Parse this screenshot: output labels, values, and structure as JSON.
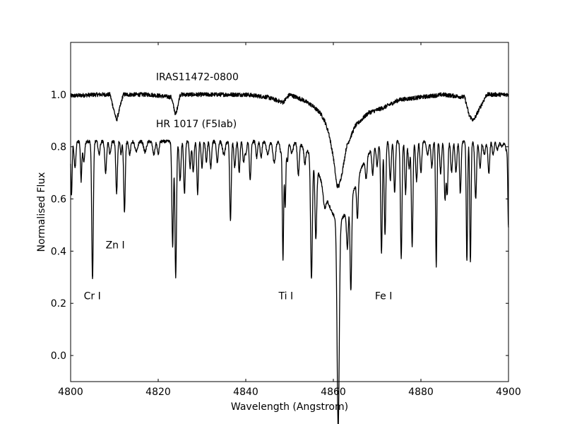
{
  "chart_data": {
    "type": "line",
    "title": "",
    "xlabel": "Wavelength (Angstrom)",
    "ylabel": "Normalised Flux",
    "xlim": [
      4800,
      4900
    ],
    "ylim": [
      -0.1,
      1.2
    ],
    "grid": false,
    "xticks": [
      4800,
      4820,
      4840,
      4860,
      4880,
      4900
    ],
    "yticks": [
      0.0,
      0.2,
      0.4,
      0.6,
      0.8,
      1.0
    ],
    "xtick_labels": [
      "4800",
      "4820",
      "4840",
      "4860",
      "4880",
      "4900"
    ],
    "ytick_labels": [
      "0.0",
      "0.2",
      "0.4",
      "0.6",
      "0.8",
      "1.0"
    ],
    "series": [
      {
        "name": "IRAS11472-0800",
        "color": "#000000",
        "continuum": 1.0,
        "noise": 0.008,
        "x": [
          4800,
          4806,
          4809,
          4810.5,
          4812,
          4818,
          4823,
          4824,
          4825,
          4830,
          4836,
          4840,
          4845,
          4848.5,
          4850,
          4853,
          4855,
          4857,
          4858,
          4859,
          4860,
          4860.8,
          4861.3,
          4862,
          4863,
          4865,
          4868,
          4871.5,
          4875,
          4880,
          4885,
          4890,
          4891,
          4892,
          4895,
          4900
        ],
        "y": [
          0.995,
          1.0,
          1.0,
          0.9,
          1.0,
          1.0,
          0.99,
          0.92,
          1.0,
          1.0,
          1.0,
          1.0,
          0.99,
          0.97,
          1.0,
          0.98,
          0.96,
          0.93,
          0.9,
          0.85,
          0.76,
          0.65,
          0.65,
          0.7,
          0.8,
          0.88,
          0.93,
          0.95,
          0.98,
          0.99,
          1.0,
          0.99,
          0.92,
          0.9,
          1.0,
          1.0
        ]
      },
      {
        "name": "HR 1017 (F5Iab)",
        "color": "#000000",
        "continuum": 0.82,
        "noise": 0.006,
        "lines": [
          [
            4800.2,
            0.2,
            0.15
          ],
          [
            4801.0,
            0.1,
            0.2
          ],
          [
            4802.4,
            0.15,
            0.15
          ],
          [
            4803.0,
            0.08,
            0.2
          ],
          [
            4805.0,
            0.53,
            0.18
          ],
          [
            4806.5,
            0.05,
            0.2
          ],
          [
            4808.0,
            0.12,
            0.2
          ],
          [
            4809.0,
            0.05,
            0.2
          ],
          [
            4810.5,
            0.2,
            0.18
          ],
          [
            4811.5,
            0.05,
            0.15
          ],
          [
            4812.3,
            0.27,
            0.18
          ],
          [
            4813.5,
            0.05,
            0.2
          ],
          [
            4815.0,
            0.04,
            0.3
          ],
          [
            4817.0,
            0.04,
            0.3
          ],
          [
            4819.0,
            0.05,
            0.25
          ],
          [
            4820.0,
            0.05,
            0.2
          ],
          [
            4823.3,
            0.4,
            0.18
          ],
          [
            4824.0,
            0.52,
            0.18
          ],
          [
            4825.0,
            0.15,
            0.2
          ],
          [
            4826.0,
            0.2,
            0.18
          ],
          [
            4827.3,
            0.1,
            0.18
          ],
          [
            4828.0,
            0.12,
            0.18
          ],
          [
            4829.0,
            0.2,
            0.18
          ],
          [
            4830.0,
            0.1,
            0.18
          ],
          [
            4831.0,
            0.08,
            0.18
          ],
          [
            4832.0,
            0.1,
            0.2
          ],
          [
            4833.5,
            0.08,
            0.2
          ],
          [
            4835.0,
            0.05,
            0.3
          ],
          [
            4836.5,
            0.3,
            0.18
          ],
          [
            4837.5,
            0.1,
            0.2
          ],
          [
            4838.5,
            0.12,
            0.18
          ],
          [
            4839.5,
            0.08,
            0.18
          ],
          [
            4840.0,
            0.05,
            0.2
          ],
          [
            4841.0,
            0.15,
            0.18
          ],
          [
            4842.5,
            0.06,
            0.18
          ],
          [
            4843.5,
            0.06,
            0.2
          ],
          [
            4845.0,
            0.05,
            0.3
          ],
          [
            4846.5,
            0.08,
            0.3
          ],
          [
            4848.0,
            0.04,
            0.2
          ],
          [
            4848.5,
            0.45,
            0.15
          ],
          [
            4849.0,
            0.25,
            0.15
          ],
          [
            4849.5,
            0.08,
            0.15
          ],
          [
            4850.5,
            0.04,
            0.3
          ],
          [
            4852.0,
            0.12,
            0.2
          ],
          [
            4853.5,
            0.06,
            0.2
          ],
          [
            4855.0,
            0.47,
            0.2
          ],
          [
            4856.0,
            0.28,
            0.2
          ],
          [
            4858.0,
            0.06,
            0.3
          ],
          [
            4861.1,
            0.8,
            0.25
          ],
          [
            4863.2,
            0.15,
            0.2
          ],
          [
            4864.0,
            0.35,
            0.18
          ],
          [
            4865.5,
            0.15,
            0.18
          ],
          [
            4867.5,
            0.08,
            0.2
          ],
          [
            4869.0,
            0.1,
            0.2
          ],
          [
            4870.0,
            0.08,
            0.2
          ],
          [
            4871.0,
            0.42,
            0.18
          ],
          [
            4871.8,
            0.35,
            0.18
          ],
          [
            4873.0,
            0.15,
            0.2
          ],
          [
            4874.0,
            0.2,
            0.18
          ],
          [
            4875.5,
            0.45,
            0.18
          ],
          [
            4876.5,
            0.2,
            0.18
          ],
          [
            4877.3,
            0.1,
            0.2
          ],
          [
            4878.0,
            0.4,
            0.18
          ],
          [
            4879.0,
            0.15,
            0.2
          ],
          [
            4880.0,
            0.12,
            0.2
          ],
          [
            4881.5,
            0.05,
            0.25
          ],
          [
            4882.5,
            0.1,
            0.2
          ],
          [
            4883.5,
            0.48,
            0.15
          ],
          [
            4884.5,
            0.12,
            0.2
          ],
          [
            4885.5,
            0.22,
            0.18
          ],
          [
            4886.0,
            0.2,
            0.18
          ],
          [
            4887.0,
            0.12,
            0.2
          ],
          [
            4888.0,
            0.12,
            0.2
          ],
          [
            4889.0,
            0.2,
            0.18
          ],
          [
            4890.5,
            0.46,
            0.15
          ],
          [
            4891.3,
            0.46,
            0.15
          ],
          [
            4892.5,
            0.22,
            0.2
          ],
          [
            4893.5,
            0.1,
            0.2
          ],
          [
            4894.5,
            0.05,
            0.25
          ],
          [
            4895.5,
            0.12,
            0.2
          ],
          [
            4896.5,
            0.05,
            0.2
          ],
          [
            4897.5,
            0.03,
            0.25
          ],
          [
            4898.5,
            0.02,
            0.25
          ],
          [
            4899.5,
            0.03,
            0.25
          ],
          [
            4900.0,
            0.33,
            0.15
          ]
        ],
        "broad_lines": [
          [
            4861.3,
            0.3,
            3.5
          ]
        ]
      }
    ],
    "annotations": [
      {
        "text": "IRAS11472-0800",
        "x": 4819.5,
        "y": 1.055
      },
      {
        "text": "HR 1017 (F5Iab)",
        "x": 4819.5,
        "y": 0.875
      },
      {
        "text": "Zn I",
        "x": 4808,
        "y": 0.41
      },
      {
        "text": "Cr I",
        "x": 4803,
        "y": 0.215
      },
      {
        "text": "Ti I",
        "x": 4847.5,
        "y": 0.215
      },
      {
        "text": "Fe I",
        "x": 4869.5,
        "y": 0.215
      }
    ]
  }
}
